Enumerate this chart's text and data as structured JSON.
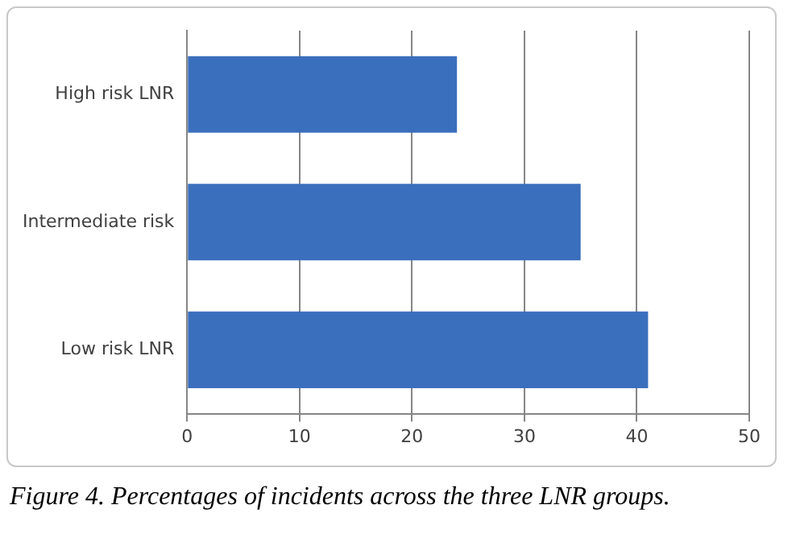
{
  "chart_data": {
    "type": "bar",
    "orientation": "horizontal",
    "categories": [
      "High risk LNR",
      "Intermediate risk",
      "Low risk LNR"
    ],
    "values": [
      24,
      35,
      41
    ],
    "color": "#3a6fbd",
    "xlim": [
      0,
      50
    ],
    "xticks": [
      0,
      10,
      20,
      30,
      40,
      50
    ],
    "grid": "x",
    "legend": false,
    "annotations": [
      "Figure 4. Percentages of incidents across the three LNR groups."
    ]
  }
}
